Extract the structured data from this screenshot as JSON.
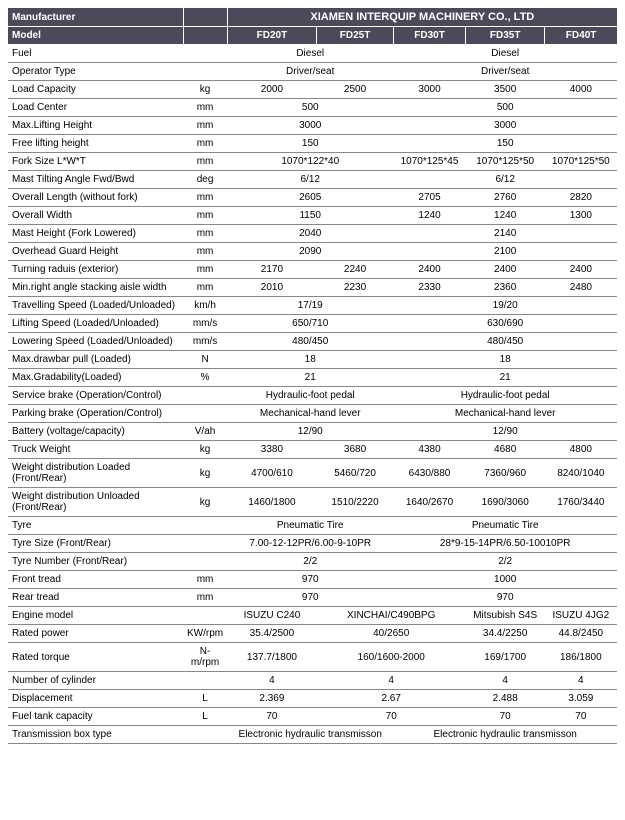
{
  "header": {
    "mfr_label": "Manufacturer",
    "mfr_value": "XIAMEN INTERQUIP MACHINERY CO., LTD",
    "model_label": "Model",
    "models": [
      "FD20T",
      "FD25T",
      "FD30T",
      "FD35T",
      "FD40T"
    ]
  },
  "rows": [
    {
      "label": "Fuel",
      "unit": "",
      "v": [
        {
          "span": 2,
          "t": "Diesel"
        },
        {
          "span": 3,
          "t": "Diesel"
        }
      ]
    },
    {
      "label": "Operator Type",
      "unit": "",
      "v": [
        {
          "span": 2,
          "t": "Driver/seat"
        },
        {
          "span": 3,
          "t": "Driver/seat"
        }
      ]
    },
    {
      "label": "Load Capacity",
      "unit": "kg",
      "v": [
        {
          "span": 1,
          "t": "2000"
        },
        {
          "span": 1,
          "t": "2500"
        },
        {
          "span": 1,
          "t": "3000"
        },
        {
          "span": 1,
          "t": "3500"
        },
        {
          "span": 1,
          "t": "4000"
        }
      ]
    },
    {
      "label": "Load Center",
      "unit": "mm",
      "v": [
        {
          "span": 2,
          "t": "500"
        },
        {
          "span": 3,
          "t": "500"
        }
      ]
    },
    {
      "label": "Max.Lifting Height",
      "unit": "mm",
      "v": [
        {
          "span": 2,
          "t": "3000"
        },
        {
          "span": 3,
          "t": "3000"
        }
      ]
    },
    {
      "label": "Free lifting height",
      "unit": "mm",
      "v": [
        {
          "span": 2,
          "t": "150"
        },
        {
          "span": 3,
          "t": "150"
        }
      ]
    },
    {
      "label": "Fork Size  L*W*T",
      "unit": "mm",
      "v": [
        {
          "span": 2,
          "t": "1070*122*40"
        },
        {
          "span": 1,
          "t": "1070*125*45"
        },
        {
          "span": 1,
          "t": "1070*125*50"
        },
        {
          "span": 1,
          "t": "1070*125*50"
        }
      ]
    },
    {
      "label": "Mast Tilting Angle  Fwd/Bwd",
      "unit": "deg",
      "v": [
        {
          "span": 2,
          "t": "6/12"
        },
        {
          "span": 3,
          "t": "6/12"
        }
      ]
    },
    {
      "label": "Overall Length (without fork)",
      "unit": "mm",
      "v": [
        {
          "span": 2,
          "t": "2605"
        },
        {
          "span": 1,
          "t": "2705"
        },
        {
          "span": 1,
          "t": "2760"
        },
        {
          "span": 1,
          "t": "2820"
        }
      ]
    },
    {
      "label": "Overall Width",
      "unit": "mm",
      "v": [
        {
          "span": 2,
          "t": "1150"
        },
        {
          "span": 1,
          "t": "1240"
        },
        {
          "span": 1,
          "t": "1240"
        },
        {
          "span": 1,
          "t": "1300"
        }
      ]
    },
    {
      "label": "Mast Height (Fork Lowered)",
      "unit": "mm",
      "v": [
        {
          "span": 2,
          "t": "2040"
        },
        {
          "span": 3,
          "t": "2140"
        }
      ]
    },
    {
      "label": "Overhead Guard Height",
      "unit": "mm",
      "v": [
        {
          "span": 2,
          "t": "2090"
        },
        {
          "span": 3,
          "t": "2100"
        }
      ]
    },
    {
      "label": "Turning raduis (exterior)",
      "unit": "mm",
      "v": [
        {
          "span": 1,
          "t": "2170"
        },
        {
          "span": 1,
          "t": "2240"
        },
        {
          "span": 1,
          "t": "2400"
        },
        {
          "span": 1,
          "t": "2400"
        },
        {
          "span": 1,
          "t": "2400"
        }
      ]
    },
    {
      "label": "Min.right angle stacking aisle width",
      "unit": "mm",
      "v": [
        {
          "span": 1,
          "t": "2010"
        },
        {
          "span": 1,
          "t": "2230"
        },
        {
          "span": 1,
          "t": "2330"
        },
        {
          "span": 1,
          "t": "2360"
        },
        {
          "span": 1,
          "t": "2480"
        }
      ]
    },
    {
      "label": "Travelling Speed (Loaded/Unloaded)",
      "unit": "km/h",
      "v": [
        {
          "span": 2,
          "t": "17/19"
        },
        {
          "span": 3,
          "t": "19/20"
        }
      ]
    },
    {
      "label": "Lifting Speed (Loaded/Unloaded)",
      "unit": "mm/s",
      "v": [
        {
          "span": 2,
          "t": "650/710"
        },
        {
          "span": 3,
          "t": "630/690"
        }
      ]
    },
    {
      "label": "Lowering Speed (Loaded/Unloaded)",
      "unit": "mm/s",
      "v": [
        {
          "span": 2,
          "t": "480/450"
        },
        {
          "span": 3,
          "t": "480/450"
        }
      ]
    },
    {
      "label": "Max.drawbar pull (Loaded)",
      "unit": "N",
      "v": [
        {
          "span": 2,
          "t": "18"
        },
        {
          "span": 3,
          "t": "18"
        }
      ]
    },
    {
      "label": "Max.Gradability(Loaded)",
      "unit": "%",
      "v": [
        {
          "span": 2,
          "t": "21"
        },
        {
          "span": 3,
          "t": "21"
        }
      ]
    },
    {
      "label": "Service brake (Operation/Control)",
      "unit": "",
      "v": [
        {
          "span": 2,
          "t": "Hydraulic-foot pedal"
        },
        {
          "span": 3,
          "t": "Hydraulic-foot pedal"
        }
      ]
    },
    {
      "label": "Parking brake (Operation/Control)",
      "unit": "",
      "v": [
        {
          "span": 2,
          "t": "Mechanical-hand lever"
        },
        {
          "span": 3,
          "t": "Mechanical-hand lever"
        }
      ]
    },
    {
      "label": "Battery (voltage/capacity)",
      "unit": "V/ah",
      "v": [
        {
          "span": 2,
          "t": "12/90"
        },
        {
          "span": 3,
          "t": "12/90"
        }
      ]
    },
    {
      "label": "Truck Weight",
      "unit": "kg",
      "v": [
        {
          "span": 1,
          "t": "3380"
        },
        {
          "span": 1,
          "t": "3680"
        },
        {
          "span": 1,
          "t": "4380"
        },
        {
          "span": 1,
          "t": "4680"
        },
        {
          "span": 1,
          "t": "4800"
        }
      ]
    },
    {
      "label": "Weight distribution Loaded (Front/Rear)",
      "unit": "kg",
      "v": [
        {
          "span": 1,
          "t": "4700/610"
        },
        {
          "span": 1,
          "t": "5460/720"
        },
        {
          "span": 1,
          "t": "6430/880"
        },
        {
          "span": 1,
          "t": "7360/960"
        },
        {
          "span": 1,
          "t": "8240/1040"
        }
      ]
    },
    {
      "label": "Weight distribution Unloaded (Front/Rear)",
      "unit": "kg",
      "v": [
        {
          "span": 1,
          "t": "1460/1800"
        },
        {
          "span": 1,
          "t": "1510/2220"
        },
        {
          "span": 1,
          "t": "1640/2670"
        },
        {
          "span": 1,
          "t": "1690/3060"
        },
        {
          "span": 1,
          "t": "1760/3440"
        }
      ]
    },
    {
      "label": "Tyre",
      "unit": "",
      "v": [
        {
          "span": 2,
          "t": "Pneumatic Tire"
        },
        {
          "span": 3,
          "t": "Pneumatic Tire"
        }
      ]
    },
    {
      "label": "Tyre Size  (Front/Rear)",
      "unit": "",
      "v": [
        {
          "span": 2,
          "t": "7.00-12-12PR/6.00-9-10PR"
        },
        {
          "span": 3,
          "t": "28*9-15-14PR/6.50-10010PR"
        }
      ]
    },
    {
      "label": "Tyre Number  (Front/Rear)",
      "unit": "",
      "v": [
        {
          "span": 2,
          "t": "2/2"
        },
        {
          "span": 3,
          "t": "2/2"
        }
      ]
    },
    {
      "label": "Front tread",
      "unit": "mm",
      "v": [
        {
          "span": 2,
          "t": "970"
        },
        {
          "span": 3,
          "t": "1000"
        }
      ]
    },
    {
      "label": "Rear tread",
      "unit": "mm",
      "v": [
        {
          "span": 2,
          "t": "970"
        },
        {
          "span": 3,
          "t": "970"
        }
      ]
    },
    {
      "label": "Engine model",
      "unit": "",
      "v": [
        {
          "span": 1,
          "t": "ISUZU C240"
        },
        {
          "span": 2,
          "t": "XINCHAI/C490BPG"
        },
        {
          "span": 1,
          "t": "Mitsubish S4S"
        },
        {
          "span": 1,
          "t": "ISUZU 4JG2"
        }
      ]
    },
    {
      "label": "Rated power",
      "unit": "KW/rpm",
      "v": [
        {
          "span": 1,
          "t": "35.4/2500"
        },
        {
          "span": 2,
          "t": "40/2650"
        },
        {
          "span": 1,
          "t": "34.4/2250"
        },
        {
          "span": 1,
          "t": "44.8/2450"
        }
      ]
    },
    {
      "label": "Rated torque",
      "unit": "N-m/rpm",
      "v": [
        {
          "span": 1,
          "t": "137.7/1800"
        },
        {
          "span": 2,
          "t": "160/1600-2000"
        },
        {
          "span": 1,
          "t": "169/1700"
        },
        {
          "span": 1,
          "t": "186/1800"
        }
      ]
    },
    {
      "label": "Number of cylinder",
      "unit": "",
      "v": [
        {
          "span": 1,
          "t": "4"
        },
        {
          "span": 2,
          "t": "4"
        },
        {
          "span": 1,
          "t": "4"
        },
        {
          "span": 1,
          "t": "4"
        }
      ]
    },
    {
      "label": "Displacement",
      "unit": "L",
      "v": [
        {
          "span": 1,
          "t": "2.369"
        },
        {
          "span": 2,
          "t": "2.67"
        },
        {
          "span": 1,
          "t": "2.488"
        },
        {
          "span": 1,
          "t": "3.059"
        }
      ]
    },
    {
      "label": "Fuel tank capacity",
      "unit": "L",
      "v": [
        {
          "span": 1,
          "t": "70"
        },
        {
          "span": 2,
          "t": "70"
        },
        {
          "span": 1,
          "t": "70"
        },
        {
          "span": 1,
          "t": "70"
        }
      ]
    },
    {
      "label": "Transmission box type",
      "unit": "",
      "v": [
        {
          "span": 2,
          "t": "Electronic hydraulic transmisson"
        },
        {
          "span": 3,
          "t": "Electronic hydraulic transmisson"
        }
      ]
    }
  ]
}
